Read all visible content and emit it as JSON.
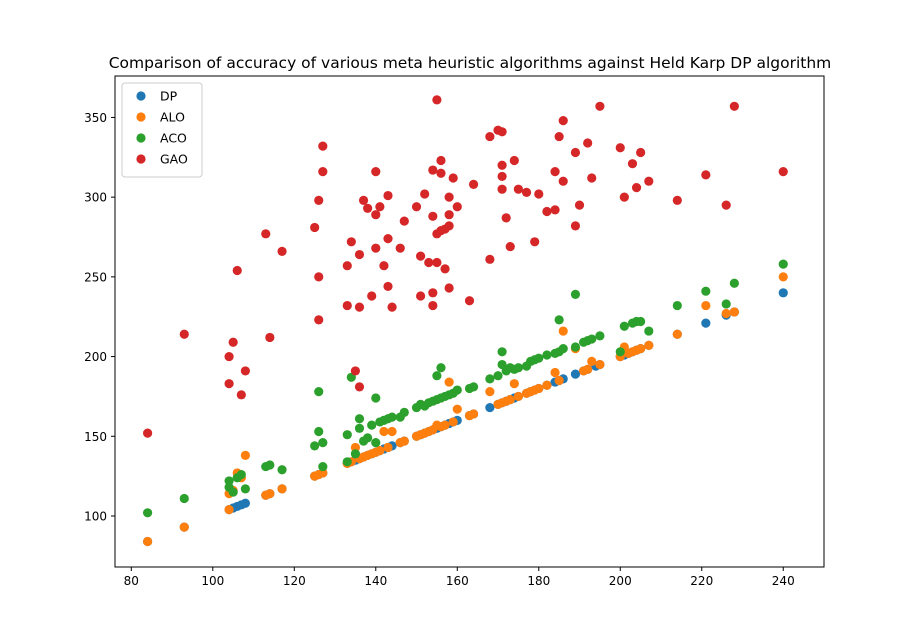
{
  "chart_data": {
    "type": "scatter",
    "title": "Comparison of accuracy of various meta heuristic algorithms against Held Karp DP algorithm",
    "xlabel": "",
    "ylabel": "",
    "xlim": [
      76,
      250
    ],
    "ylim": [
      68,
      376
    ],
    "xticks": [
      80,
      100,
      120,
      140,
      160,
      180,
      200,
      220,
      240
    ],
    "yticks": [
      100,
      150,
      200,
      250,
      300,
      350
    ],
    "grid": false,
    "legend_position": "top-left",
    "series": [
      {
        "name": "DP",
        "color": "#1f77b4",
        "points": [
          [
            84,
            84
          ],
          [
            93,
            93
          ],
          [
            104,
            104
          ],
          [
            105,
            105
          ],
          [
            106,
            106
          ],
          [
            107,
            107
          ],
          [
            108,
            108
          ],
          [
            113,
            113
          ],
          [
            114,
            114
          ],
          [
            117,
            117
          ],
          [
            125,
            125
          ],
          [
            126,
            126
          ],
          [
            127,
            127
          ],
          [
            133,
            133
          ],
          [
            134,
            134
          ],
          [
            135,
            135
          ],
          [
            136,
            136
          ],
          [
            137,
            137
          ],
          [
            138,
            138
          ],
          [
            139,
            139
          ],
          [
            140,
            140
          ],
          [
            141,
            141
          ],
          [
            142,
            142
          ],
          [
            143,
            143
          ],
          [
            144,
            144
          ],
          [
            146,
            146
          ],
          [
            147,
            147
          ],
          [
            150,
            150
          ],
          [
            151,
            151
          ],
          [
            152,
            152
          ],
          [
            153,
            153
          ],
          [
            154,
            154
          ],
          [
            155,
            155
          ],
          [
            156,
            156
          ],
          [
            157,
            157
          ],
          [
            158,
            158
          ],
          [
            159,
            159
          ],
          [
            160,
            160
          ],
          [
            163,
            163
          ],
          [
            164,
            164
          ],
          [
            168,
            168
          ],
          [
            170,
            170
          ],
          [
            171,
            171
          ],
          [
            172,
            172
          ],
          [
            173,
            173
          ],
          [
            174,
            174
          ],
          [
            175,
            175
          ],
          [
            177,
            177
          ],
          [
            178,
            178
          ],
          [
            179,
            179
          ],
          [
            180,
            180
          ],
          [
            182,
            182
          ],
          [
            184,
            184
          ],
          [
            185,
            185
          ],
          [
            186,
            186
          ],
          [
            189,
            189
          ],
          [
            191,
            191
          ],
          [
            192,
            192
          ],
          [
            194,
            194
          ],
          [
            195,
            195
          ],
          [
            200,
            200
          ],
          [
            201,
            201
          ],
          [
            202,
            202
          ],
          [
            203,
            203
          ],
          [
            204,
            204
          ],
          [
            205,
            205
          ],
          [
            207,
            207
          ],
          [
            214,
            214
          ],
          [
            221,
            221
          ],
          [
            226,
            226
          ],
          [
            228,
            228
          ],
          [
            240,
            240
          ]
        ]
      },
      {
        "name": "ALO",
        "color": "#ff7f0e",
        "points": [
          [
            84,
            84
          ],
          [
            93,
            93
          ],
          [
            104,
            104
          ],
          [
            104,
            114
          ],
          [
            105,
            116
          ],
          [
            106,
            127
          ],
          [
            107,
            124
          ],
          [
            108,
            138
          ],
          [
            113,
            113
          ],
          [
            114,
            114
          ],
          [
            117,
            117
          ],
          [
            125,
            125
          ],
          [
            126,
            126
          ],
          [
            127,
            127
          ],
          [
            133,
            133
          ],
          [
            134,
            134
          ],
          [
            135,
            143
          ],
          [
            136,
            136
          ],
          [
            137,
            137
          ],
          [
            138,
            138
          ],
          [
            139,
            139
          ],
          [
            140,
            140
          ],
          [
            141,
            141
          ],
          [
            142,
            153
          ],
          [
            143,
            143
          ],
          [
            144,
            153
          ],
          [
            146,
            146
          ],
          [
            147,
            147
          ],
          [
            150,
            150
          ],
          [
            151,
            151
          ],
          [
            152,
            152
          ],
          [
            153,
            153
          ],
          [
            154,
            154
          ],
          [
            155,
            157
          ],
          [
            156,
            156
          ],
          [
            157,
            157
          ],
          [
            158,
            184
          ],
          [
            159,
            159
          ],
          [
            160,
            167
          ],
          [
            163,
            163
          ],
          [
            164,
            164
          ],
          [
            168,
            178
          ],
          [
            170,
            170
          ],
          [
            171,
            171
          ],
          [
            172,
            172
          ],
          [
            173,
            173
          ],
          [
            174,
            183
          ],
          [
            175,
            175
          ],
          [
            177,
            177
          ],
          [
            178,
            178
          ],
          [
            179,
            179
          ],
          [
            180,
            180
          ],
          [
            182,
            182
          ],
          [
            184,
            190
          ],
          [
            185,
            185
          ],
          [
            186,
            216
          ],
          [
            189,
            205
          ],
          [
            191,
            191
          ],
          [
            192,
            192
          ],
          [
            193,
            197
          ],
          [
            195,
            195
          ],
          [
            200,
            200
          ],
          [
            201,
            206
          ],
          [
            202,
            202
          ],
          [
            203,
            203
          ],
          [
            204,
            204
          ],
          [
            205,
            205
          ],
          [
            207,
            207
          ],
          [
            214,
            214
          ],
          [
            221,
            232
          ],
          [
            226,
            227
          ],
          [
            228,
            228
          ],
          [
            240,
            250
          ]
        ]
      },
      {
        "name": "ACO",
        "color": "#2ca02c",
        "points": [
          [
            84,
            102
          ],
          [
            93,
            111
          ],
          [
            104,
            118
          ],
          [
            104,
            122
          ],
          [
            105,
            115
          ],
          [
            106,
            124
          ],
          [
            107,
            126
          ],
          [
            108,
            117
          ],
          [
            113,
            131
          ],
          [
            114,
            132
          ],
          [
            117,
            129
          ],
          [
            125,
            144
          ],
          [
            126,
            153
          ],
          [
            126,
            178
          ],
          [
            127,
            146
          ],
          [
            127,
            131
          ],
          [
            133,
            134
          ],
          [
            133,
            151
          ],
          [
            134,
            187
          ],
          [
            135,
            139
          ],
          [
            136,
            161
          ],
          [
            136,
            155
          ],
          [
            137,
            147
          ],
          [
            138,
            149
          ],
          [
            139,
            157
          ],
          [
            140,
            146
          ],
          [
            140,
            174
          ],
          [
            141,
            159
          ],
          [
            142,
            160
          ],
          [
            143,
            161
          ],
          [
            144,
            162
          ],
          [
            146,
            162
          ],
          [
            147,
            165
          ],
          [
            150,
            168
          ],
          [
            151,
            170
          ],
          [
            152,
            169
          ],
          [
            153,
            171
          ],
          [
            154,
            172
          ],
          [
            155,
            173
          ],
          [
            155,
            188
          ],
          [
            156,
            174
          ],
          [
            156,
            193
          ],
          [
            157,
            175
          ],
          [
            158,
            176
          ],
          [
            159,
            177
          ],
          [
            160,
            179
          ],
          [
            163,
            180
          ],
          [
            164,
            181
          ],
          [
            168,
            186
          ],
          [
            170,
            188
          ],
          [
            171,
            203
          ],
          [
            171,
            195
          ],
          [
            172,
            191
          ],
          [
            173,
            193
          ],
          [
            174,
            192
          ],
          [
            175,
            193
          ],
          [
            177,
            194
          ],
          [
            178,
            197
          ],
          [
            179,
            198
          ],
          [
            180,
            199
          ],
          [
            182,
            201
          ],
          [
            184,
            202
          ],
          [
            185,
            203
          ],
          [
            185,
            223
          ],
          [
            186,
            205
          ],
          [
            189,
            239
          ],
          [
            189,
            206
          ],
          [
            191,
            209
          ],
          [
            192,
            210
          ],
          [
            193,
            211
          ],
          [
            195,
            213
          ],
          [
            200,
            203
          ],
          [
            201,
            219
          ],
          [
            203,
            221
          ],
          [
            204,
            222
          ],
          [
            205,
            222
          ],
          [
            207,
            216
          ],
          [
            214,
            232
          ],
          [
            221,
            241
          ],
          [
            226,
            233
          ],
          [
            228,
            246
          ],
          [
            240,
            258
          ]
        ]
      },
      {
        "name": "GAO",
        "color": "#d62728",
        "points": [
          [
            84,
            152
          ],
          [
            93,
            214
          ],
          [
            104,
            200
          ],
          [
            104,
            183
          ],
          [
            105,
            209
          ],
          [
            106,
            254
          ],
          [
            107,
            176
          ],
          [
            108,
            191
          ],
          [
            113,
            277
          ],
          [
            114,
            212
          ],
          [
            117,
            266
          ],
          [
            125,
            281
          ],
          [
            126,
            298
          ],
          [
            126,
            250
          ],
          [
            126,
            223
          ],
          [
            127,
            332
          ],
          [
            127,
            316
          ],
          [
            133,
            257
          ],
          [
            133,
            232
          ],
          [
            134,
            272
          ],
          [
            135,
            191
          ],
          [
            136,
            181
          ],
          [
            136,
            264
          ],
          [
            136,
            231
          ],
          [
            137,
            298
          ],
          [
            138,
            293
          ],
          [
            139,
            238
          ],
          [
            140,
            316
          ],
          [
            140,
            289
          ],
          [
            140,
            268
          ],
          [
            141,
            294
          ],
          [
            142,
            257
          ],
          [
            143,
            274
          ],
          [
            143,
            244
          ],
          [
            143,
            301
          ],
          [
            144,
            231
          ],
          [
            146,
            268
          ],
          [
            147,
            285
          ],
          [
            150,
            294
          ],
          [
            151,
            263
          ],
          [
            151,
            238
          ],
          [
            152,
            302
          ],
          [
            153,
            259
          ],
          [
            154,
            288
          ],
          [
            154,
            240
          ],
          [
            154,
            317
          ],
          [
            154,
            232
          ],
          [
            155,
            361
          ],
          [
            155,
            277
          ],
          [
            155,
            259
          ],
          [
            156,
            279
          ],
          [
            156,
            323
          ],
          [
            156,
            315
          ],
          [
            157,
            280
          ],
          [
            157,
            255
          ],
          [
            158,
            300
          ],
          [
            158,
            289
          ],
          [
            158,
            282
          ],
          [
            158,
            243
          ],
          [
            159,
            312
          ],
          [
            160,
            294
          ],
          [
            163,
            235
          ],
          [
            164,
            308
          ],
          [
            168,
            338
          ],
          [
            168,
            261
          ],
          [
            170,
            342
          ],
          [
            171,
            341
          ],
          [
            171,
            320
          ],
          [
            171,
            313
          ],
          [
            171,
            305
          ],
          [
            172,
            287
          ],
          [
            173,
            269
          ],
          [
            174,
            323
          ],
          [
            175,
            305
          ],
          [
            177,
            303
          ],
          [
            179,
            272
          ],
          [
            180,
            302
          ],
          [
            182,
            291
          ],
          [
            184,
            316
          ],
          [
            184,
            292
          ],
          [
            185,
            338
          ],
          [
            186,
            348
          ],
          [
            186,
            310
          ],
          [
            189,
            282
          ],
          [
            189,
            328
          ],
          [
            190,
            295
          ],
          [
            192,
            334
          ],
          [
            193,
            312
          ],
          [
            195,
            357
          ],
          [
            200,
            331
          ],
          [
            201,
            300
          ],
          [
            203,
            321
          ],
          [
            204,
            306
          ],
          [
            205,
            328
          ],
          [
            207,
            310
          ],
          [
            214,
            298
          ],
          [
            221,
            314
          ],
          [
            226,
            295
          ],
          [
            228,
            357
          ],
          [
            240,
            316
          ]
        ]
      }
    ]
  }
}
